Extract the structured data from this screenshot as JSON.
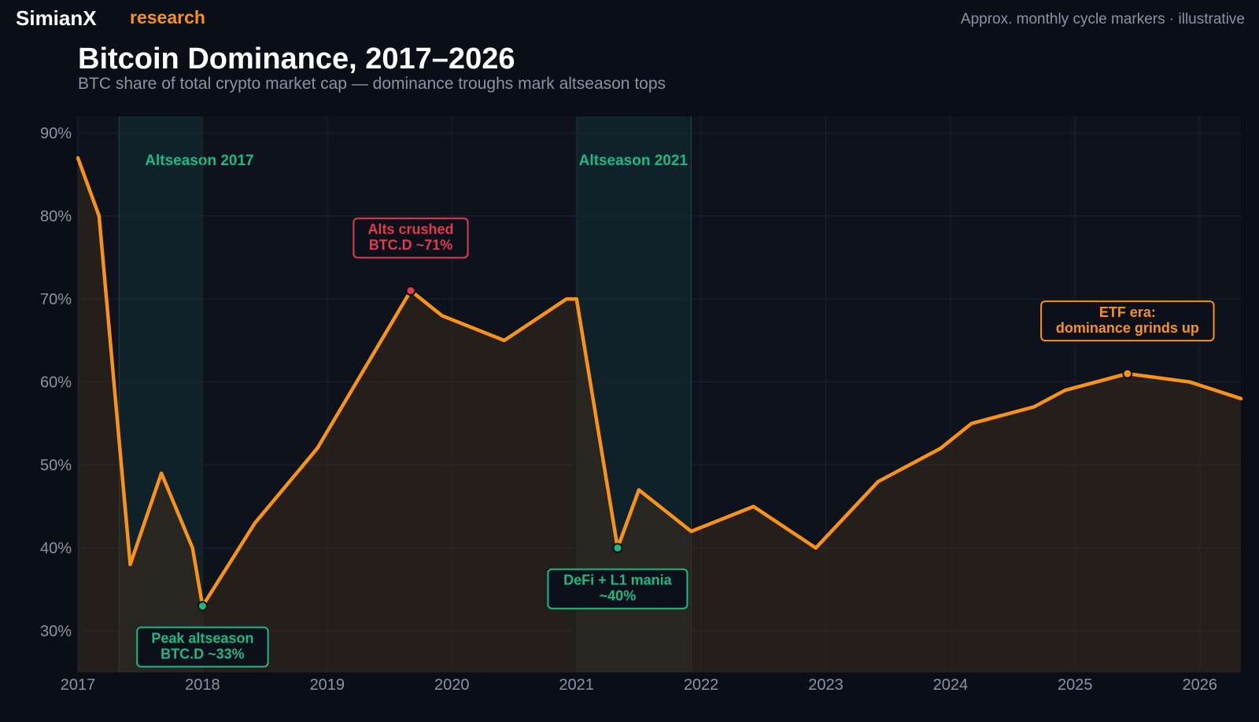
{
  "header": {
    "brand": "SimianX",
    "brand_sub": "research",
    "note": "Approx. monthly cycle markers · illustrative"
  },
  "colors": {
    "background": "#0a0e17",
    "plot_background": "#0d121d",
    "line": "#f7931a",
    "green": "#1fb883",
    "red": "#e23b4e",
    "text_muted": "#8b93a3"
  },
  "chart_data": {
    "type": "line",
    "title": "Bitcoin Dominance, 2017–2026",
    "subtitle": "BTC share of total crypto market cap — dominance troughs mark altseason tops",
    "xlabel": "",
    "ylabel": "",
    "xlim": [
      2017.0,
      2026.33
    ],
    "ylim": [
      25,
      92
    ],
    "grid": true,
    "x_ticks": [
      "2017",
      "2018",
      "2019",
      "2020",
      "2021",
      "2022",
      "2023",
      "2024",
      "2025",
      "2026"
    ],
    "y_ticks": [
      "30%",
      "40%",
      "50%",
      "60%",
      "70%",
      "80%",
      "90%"
    ],
    "series": [
      {
        "x": [
          2017.0,
          2017.17,
          2017.42,
          2017.67,
          2017.92,
          2018.0,
          2018.42,
          2018.92,
          2019.67,
          2019.92,
          2020.42,
          2020.92,
          2021.0,
          2021.33,
          2021.5,
          2021.92,
          2022.42,
          2022.92,
          2023.42,
          2023.92,
          2024.17,
          2024.67,
          2024.92,
          2025.42,
          2025.92,
          2026.33
        ],
        "values": [
          87,
          80,
          38,
          49,
          40,
          33,
          43,
          52,
          71,
          68,
          65,
          70,
          70,
          40,
          47,
          42,
          45,
          40,
          48,
          52,
          55,
          57,
          59,
          61,
          60,
          58
        ]
      }
    ],
    "shaded_regions": [
      {
        "label": "Altseason 2017",
        "x_start": 2017.33,
        "x_end": 2018.0
      },
      {
        "label": "Altseason 2021",
        "x_start": 2021.0,
        "x_end": 2021.92
      }
    ],
    "annotations": [
      {
        "lines": [
          "Alts crushed",
          "BTC.D ~71%"
        ],
        "x": 2019.67,
        "y": 71,
        "color": "red",
        "position": "above"
      },
      {
        "lines": [
          "Peak altseason",
          "BTC.D ~33%"
        ],
        "x": 2018.0,
        "y": 33,
        "color": "green",
        "position": "below"
      },
      {
        "lines": [
          "DeFi + L1 mania",
          "~40%"
        ],
        "x": 2021.33,
        "y": 40,
        "color": "green",
        "position": "below"
      },
      {
        "lines": [
          "ETF era:",
          "dominance grinds up"
        ],
        "x": 2025.42,
        "y": 61,
        "color": "orange",
        "position": "above"
      }
    ]
  }
}
